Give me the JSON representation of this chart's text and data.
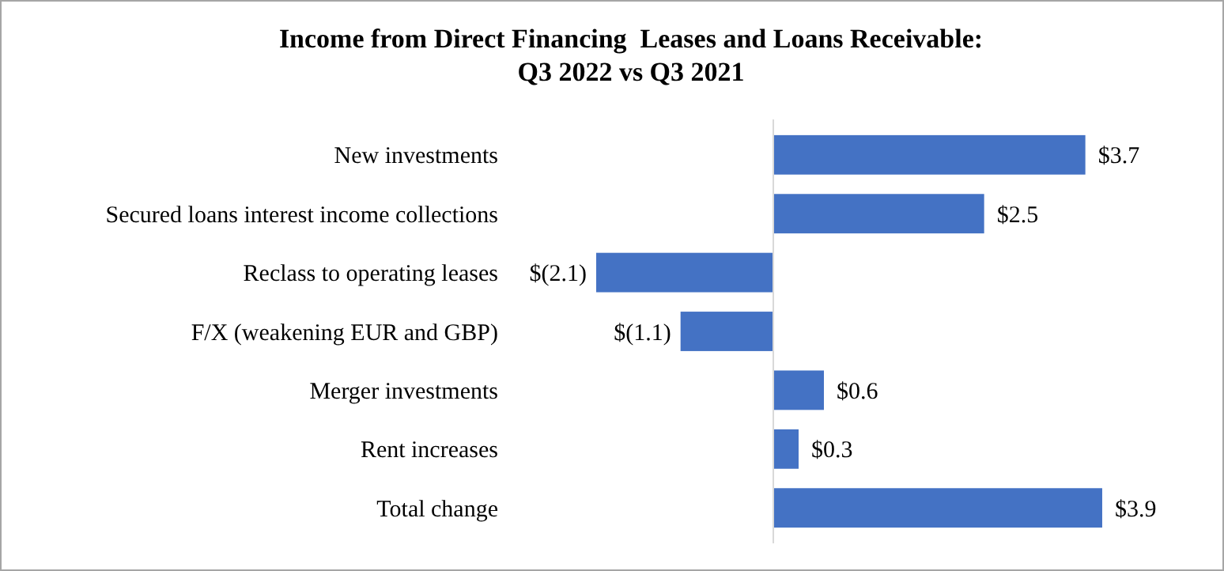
{
  "chart_data": {
    "type": "bar",
    "orientation": "horizontal",
    "title": "Income from Direct Financing  Leases and Loans Receivable:\nQ3 2022 vs Q3 2021",
    "categories": [
      "New investments",
      "Secured loans interest income collections",
      "Reclass to operating leases",
      "F/X (weakening EUR and GBP)",
      "Merger investments",
      "Rent increases",
      "Total change"
    ],
    "values": [
      3.7,
      2.5,
      -2.1,
      -1.1,
      0.6,
      0.3,
      3.9
    ],
    "value_labels": [
      "$3.7",
      "$2.5",
      "$(2.1)",
      "$(1.1)",
      "$0.6",
      "$0.3",
      "$3.9"
    ],
    "color": "#4472c4"
  }
}
